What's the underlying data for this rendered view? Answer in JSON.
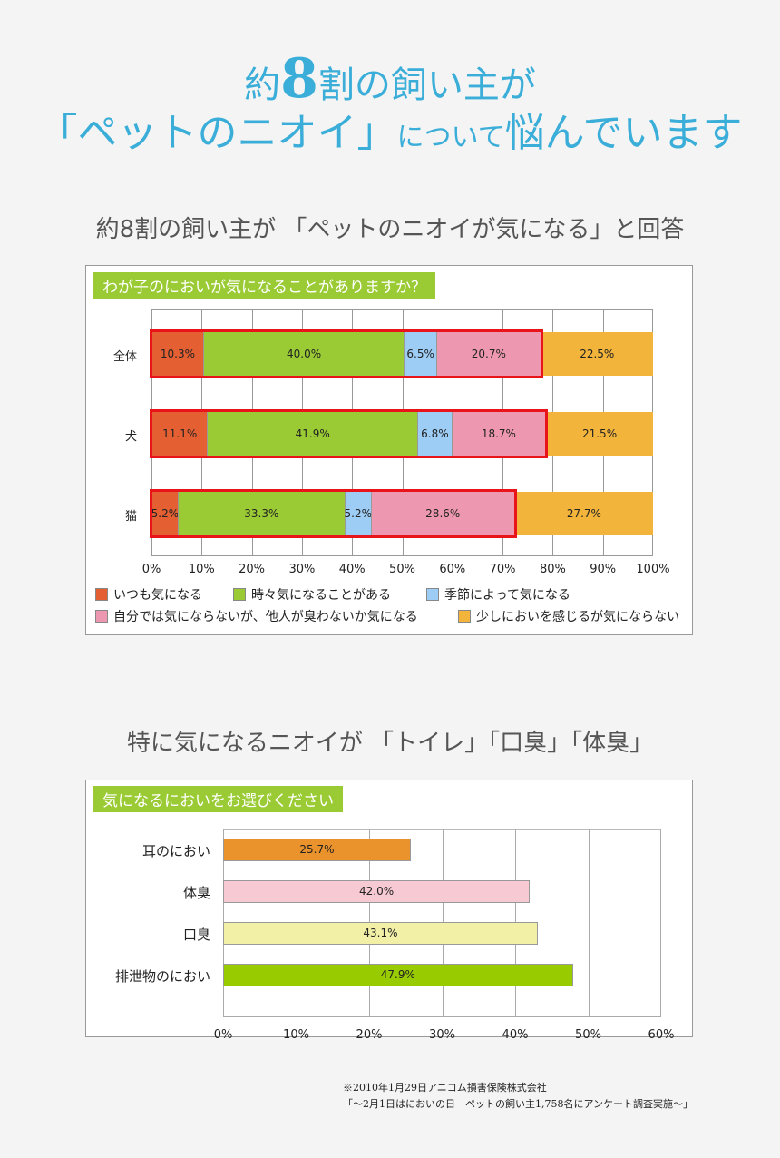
{
  "header": {
    "line1_pre": "約",
    "line1_num": "8",
    "line1_post": "割の飼い主が",
    "line2_main": "「ペットのニオイ」",
    "line2_small": "について",
    "line2_end": "悩んでいます"
  },
  "section1": {
    "subtitle": "約8割の飼い主が 「ペットのニオイが気になる」と回答",
    "question": "わが子のにおいが気になることがありますか？"
  },
  "section2": {
    "subtitle": "特に気になるニオイが 「トイレ」「口臭」「体臭」",
    "question": "気になるにおいをお選びください"
  },
  "footnote": {
    "line1": "※2010年1月29日アニコム損害保険株式会社",
    "line2": "「～2月1日はにおいの日　ペットの飼い主1,758名にアンケート調査実施～」"
  },
  "chart_data": [
    {
      "type": "bar",
      "stacked": true,
      "orientation": "horizontal",
      "categories": [
        "全体",
        "犬",
        "猫"
      ],
      "series": [
        {
          "name": "いつも気になる",
          "color": "#e45f32",
          "values": [
            10.3,
            11.1,
            5.2
          ],
          "labels": [
            "10.3%",
            "11.1%",
            "5.2%"
          ]
        },
        {
          "name": "時々気になることがある",
          "color": "#9acb34",
          "values": [
            40.0,
            41.9,
            33.3
          ],
          "labels": [
            "40.0%",
            "41.9%",
            "33.3%"
          ]
        },
        {
          "name": "季節によって気になる",
          "color": "#9dccf5",
          "values": [
            6.5,
            6.8,
            5.2
          ],
          "labels": [
            "6.5%",
            "6.8%",
            "5.2%"
          ]
        },
        {
          "name": "自分では気にならないが、他人が臭わないか気になる",
          "color": "#ed98b0",
          "values": [
            20.7,
            18.7,
            28.6
          ],
          "labels": [
            "20.7%",
            "18.7%",
            "28.6%"
          ]
        },
        {
          "name": "少しにおいを感じるが気にならない",
          "color": "#f2b43a",
          "values": [
            22.5,
            21.5,
            27.7
          ],
          "labels": [
            "22.5%",
            "21.5%",
            "27.7%"
          ]
        }
      ],
      "xlim": [
        0,
        100
      ],
      "xticks": [
        "0%",
        "10%",
        "20%",
        "30%",
        "40%",
        "50%",
        "60%",
        "70%",
        "80%",
        "90%",
        "100%"
      ],
      "highlight": "first four series outlined in red",
      "legend": "bottom"
    },
    {
      "type": "bar",
      "orientation": "horizontal",
      "categories": [
        "耳のにおい",
        "体臭",
        "口臭",
        "排泄物のにおい"
      ],
      "values": [
        25.7,
        42.0,
        43.1,
        47.9
      ],
      "labels": [
        "25.7%",
        "42.0%",
        "43.1%",
        "47.9%"
      ],
      "colors": [
        "#ea922c",
        "#f7c9d3",
        "#f2efa6",
        "#99cc00"
      ],
      "xlim": [
        0,
        60
      ],
      "xticks": [
        "0%",
        "10%",
        "20%",
        "30%",
        "40%",
        "50%",
        "60%"
      ]
    }
  ]
}
